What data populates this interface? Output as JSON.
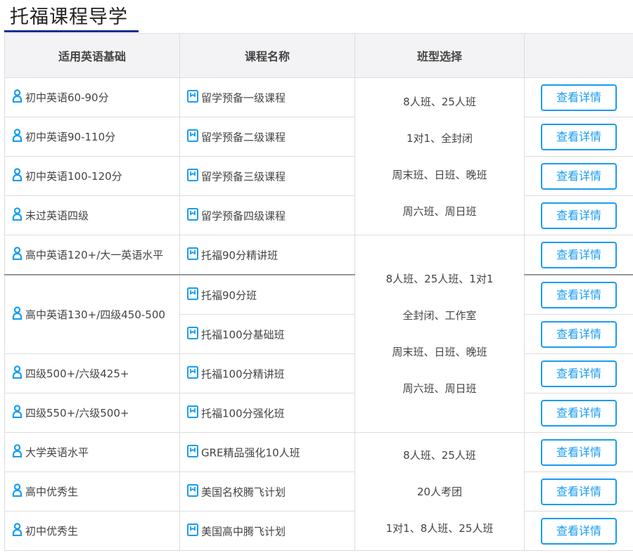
{
  "title": "托福课程导学",
  "accent": "#1a9cf0",
  "headers": [
    "适用英语基础",
    "课程名称",
    "班型选择",
    ""
  ],
  "button_label": "查看详情",
  "rows": [
    {
      "level": "初中英语60-90分",
      "course": "留学预备一级课程"
    },
    {
      "level": "初中英语90-110分",
      "course": "留学预备二级课程"
    },
    {
      "level": "初中英语100-120分",
      "course": "留学预备三级课程"
    },
    {
      "level": "未过英语四级",
      "course": "留学预备四级课程"
    },
    {
      "level": "高中英语120+/大一英语水平",
      "course": "托福90分精讲班"
    },
    {
      "level": "高中英语130+/四级450-500",
      "course": "托福90分班"
    },
    {
      "level": "",
      "course": "托福100分基础班"
    },
    {
      "level": "四级500+/六级425+",
      "course": "托福100分精讲班"
    },
    {
      "level": "四级550+/六级500+",
      "course": "托福100分强化班"
    },
    {
      "level": "大学英语水平",
      "course": "GRE精品强化10人班"
    },
    {
      "level": "高中优秀生",
      "course": "美国名校腾飞计划"
    },
    {
      "level": "初中优秀生",
      "course": "美国高中腾飞计划"
    }
  ],
  "class_groups": [
    [
      "8人班、25人班",
      "1对1、全封闭",
      "周末班、日班、晚班",
      "周六班、周日班"
    ],
    [
      "8人班、25人班、1对1",
      "全封闭、工作室",
      "周末班、日班、晚班",
      "周六班、周日班"
    ],
    [
      "8人班、25人班",
      "20人考团",
      "1对1、8人班、25人班"
    ]
  ]
}
